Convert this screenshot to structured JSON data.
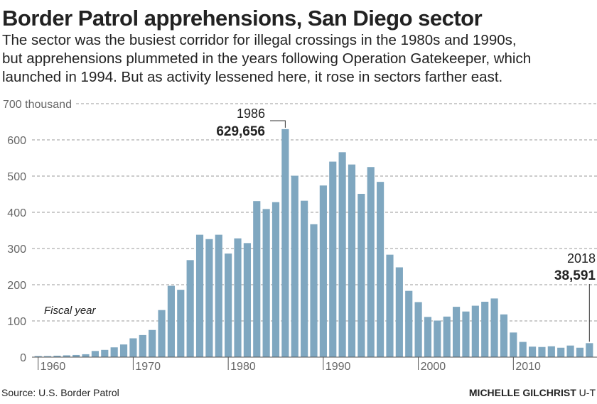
{
  "chart_data": {
    "type": "bar",
    "title": "Border Patrol apprehensions, San Diego sector",
    "subtitle": [
      "The sector was the busiest corridor for illegal crossings in the 1980s and 1990s,",
      "but apprehensions plummeted in the years following Operation Gatekeeper, which",
      "launched in 1994. But as activity lessened here, it rose in sectors farther east."
    ],
    "x_label": "Fiscal year",
    "x": [
      1960,
      1961,
      1962,
      1963,
      1964,
      1965,
      1966,
      1967,
      1968,
      1969,
      1970,
      1971,
      1972,
      1973,
      1974,
      1975,
      1976,
      1977,
      1978,
      1979,
      1980,
      1981,
      1982,
      1983,
      1984,
      1985,
      1986,
      1987,
      1988,
      1989,
      1990,
      1991,
      1992,
      1993,
      1994,
      1995,
      1996,
      1997,
      1998,
      1999,
      2000,
      2001,
      2002,
      2003,
      2004,
      2005,
      2006,
      2007,
      2008,
      2009,
      2010,
      2011,
      2012,
      2013,
      2014,
      2015,
      2016,
      2017,
      2018
    ],
    "values": [
      3,
      3,
      4,
      5,
      6,
      8,
      17,
      20,
      27,
      35,
      52,
      61,
      75,
      130,
      197,
      186,
      268,
      338,
      326,
      338,
      286,
      328,
      315,
      431,
      409,
      428,
      629.656,
      501,
      432,
      367,
      474,
      540,
      566,
      532,
      451,
      525,
      484,
      283,
      248,
      183,
      152,
      111,
      101,
      112,
      139,
      126,
      142,
      153,
      162,
      118,
      68,
      42,
      29,
      28,
      30,
      26,
      32,
      26,
      38.591
    ],
    "value_labels": [
      null,
      null,
      null,
      null,
      null,
      null,
      null,
      null,
      null,
      null,
      null,
      null,
      null,
      null,
      null,
      null,
      null,
      null,
      null,
      null,
      null,
      null,
      null,
      null,
      null,
      null,
      "629,656",
      null,
      null,
      null,
      null,
      null,
      null,
      null,
      null,
      null,
      null,
      null,
      null,
      null,
      null,
      null,
      null,
      null,
      null,
      null,
      null,
      null,
      null,
      null,
      null,
      null,
      null,
      null,
      null,
      null,
      null,
      null,
      "38,591"
    ],
    "annotations": [
      {
        "text": "1986",
        "x": 1986
      },
      {
        "text": "2018",
        "x": 2018
      }
    ],
    "color": "#7fa7c0",
    "xlim": [
      1959.5,
      2018.5
    ],
    "xticks": [
      1960,
      1970,
      1980,
      1990,
      2000,
      2010
    ],
    "ylim": [
      0,
      700
    ],
    "yticks": [
      0,
      100,
      200,
      300,
      400,
      500,
      600,
      {
        "value": 700,
        "label": "700 thousand"
      }
    ],
    "grid": true,
    "source": "Source: U.S. Border Patrol",
    "credit": [
      "MICHELLE GILCHRIST",
      "U-T"
    ]
  }
}
